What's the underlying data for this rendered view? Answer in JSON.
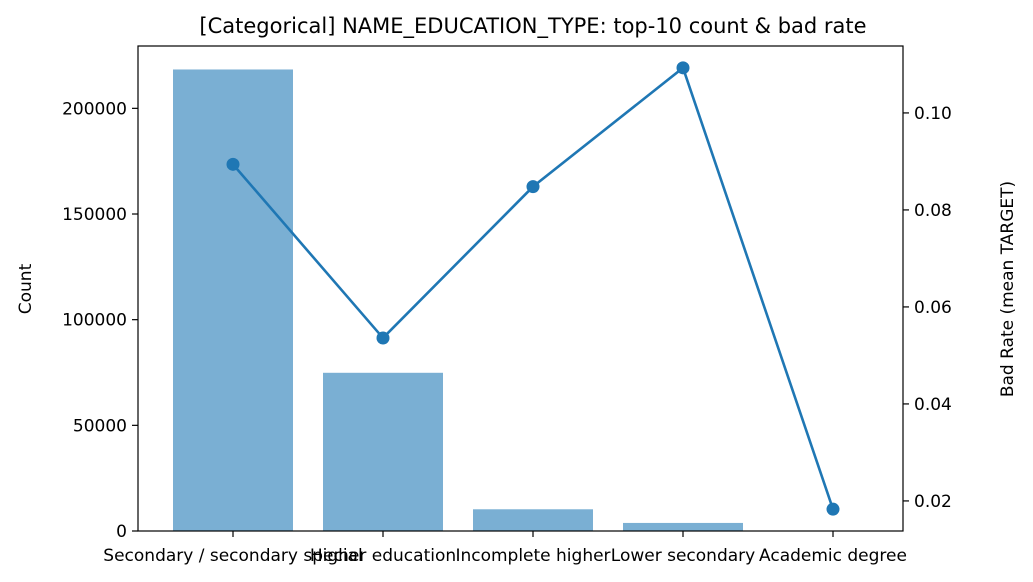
{
  "chart_data": {
    "type": "bar+line",
    "title": "[Categorical] NAME_EDUCATION_TYPE: top-10 count & bad rate",
    "categories": [
      "Secondary / secondary special",
      "Higher education",
      "Incomplete higher",
      "Lower secondary",
      "Academic degree"
    ],
    "bar_series": {
      "values": [
        218391,
        74863,
        10277,
        3816,
        164
      ],
      "color": "#7aafd3"
    },
    "line_series": {
      "values": [
        0.0894,
        0.0536,
        0.0848,
        0.1093,
        0.0183
      ],
      "color": "#1f77b4"
    },
    "ylabel": "Count",
    "y2label": "Bad Rate (mean TARGET)",
    "ylim": [
      0,
      229500
    ],
    "y2lim": [
      0.0138,
      0.1138
    ],
    "yticks": [
      "0",
      "50000",
      "100000",
      "150000",
      "200000"
    ],
    "y2ticks": [
      "0.02",
      "0.04",
      "0.06",
      "0.08",
      "0.10"
    ],
    "grid": false,
    "legend": "none"
  }
}
